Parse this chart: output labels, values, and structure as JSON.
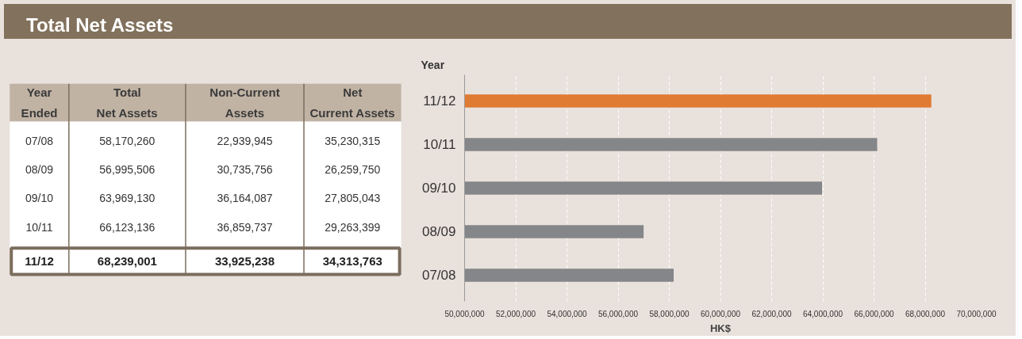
{
  "chart_data": [
    {
      "type": "other",
      "title": "Total Net Assets",
      "annotations": [
        "Year\nEnded",
        "Total\nNet Assets",
        "Non-Current\nAssets",
        "Net\nCurrent Assets",
        "07/08",
        "58,170,260",
        "22,939,945",
        "35,230,315",
        "08/09",
        "56,995,506",
        "30,735,756",
        "26,259,750",
        "09/10",
        "63,969,130",
        "36,164,087",
        "27,805,043",
        "10/11",
        "66,123,136",
        "36,859,737",
        "29,263,399",
        "11/12",
        "68,239,001",
        "33,925,238",
        "34,313,763"
      ]
    },
    {
      "type": "bar",
      "orientation": "horizontal",
      "ylabel": "Year",
      "xlabel": "HK$",
      "categories": [
        "11/12",
        "10/11",
        "09/10",
        "08/09",
        "07/08"
      ],
      "values": [
        68239001,
        66123136,
        63969130,
        56995506,
        58170260
      ],
      "colors": [
        "#e07b33",
        "#858689",
        "#858689",
        "#858689",
        "#858689"
      ],
      "xlim": [
        50000000,
        70000000
      ],
      "xticks": [
        {
          "value": 50000000,
          "label": "50,000,000"
        },
        {
          "value": 52000000,
          "label": "52,000,000"
        },
        {
          "value": 54000000,
          "label": "54,000,000"
        },
        {
          "value": 56000000,
          "label": "56,000,000"
        },
        {
          "value": 58000000,
          "label": "58,000,000"
        },
        {
          "value": 60000000,
          "label": "60,000,000"
        },
        {
          "value": 62000000,
          "label": "62,000,000"
        },
        {
          "value": 64000000,
          "label": "64,000,000"
        },
        {
          "value": 66000000,
          "label": "66,000,000"
        },
        {
          "value": 68000000,
          "label": "68,000,000"
        },
        {
          "value": 70000000,
          "label": "70,000,000"
        }
      ],
      "grid": "x"
    }
  ]
}
